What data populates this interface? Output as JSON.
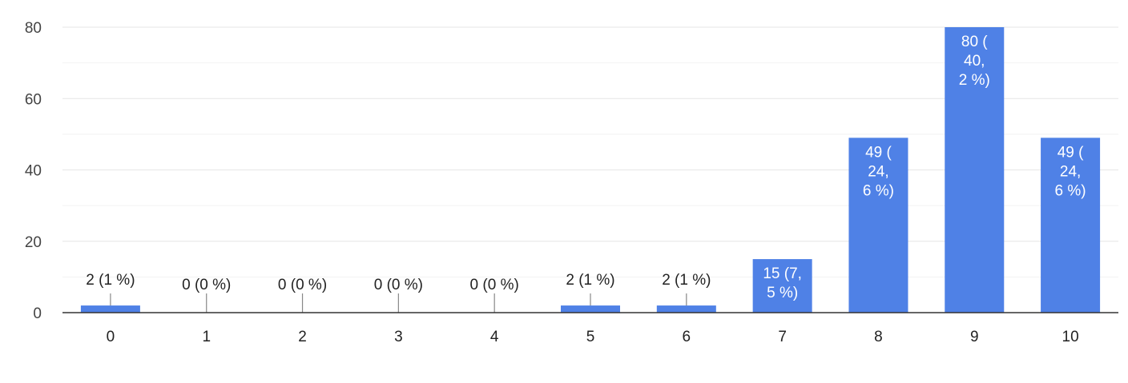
{
  "chart_data": {
    "type": "bar",
    "categories": [
      "0",
      "1",
      "2",
      "3",
      "4",
      "5",
      "6",
      "7",
      "8",
      "9",
      "10"
    ],
    "values": [
      2,
      0,
      0,
      0,
      0,
      2,
      2,
      15,
      49,
      80,
      49
    ],
    "data_labels": [
      [
        "2 (1 %)"
      ],
      [
        "0 (0 %)"
      ],
      [
        "0 (0 %)"
      ],
      [
        "0 (0 %)"
      ],
      [
        "0 (0 %)"
      ],
      [
        "2 (1 %)"
      ],
      [
        "2 (1 %)"
      ],
      [
        "15 (7,",
        "5 %)"
      ],
      [
        "49 (",
        "24,",
        "6 %)"
      ],
      [
        "80 (",
        "40,",
        "2 %)"
      ],
      [
        "49 (",
        "24,",
        "6 %)"
      ]
    ],
    "yticks": [
      "0",
      "20",
      "40",
      "60",
      "80"
    ],
    "ylim": [
      0,
      80
    ],
    "grid": true,
    "bar_color": "#4f81e6",
    "grid_color": "#e6e6e6",
    "axis_color": "#333333"
  }
}
